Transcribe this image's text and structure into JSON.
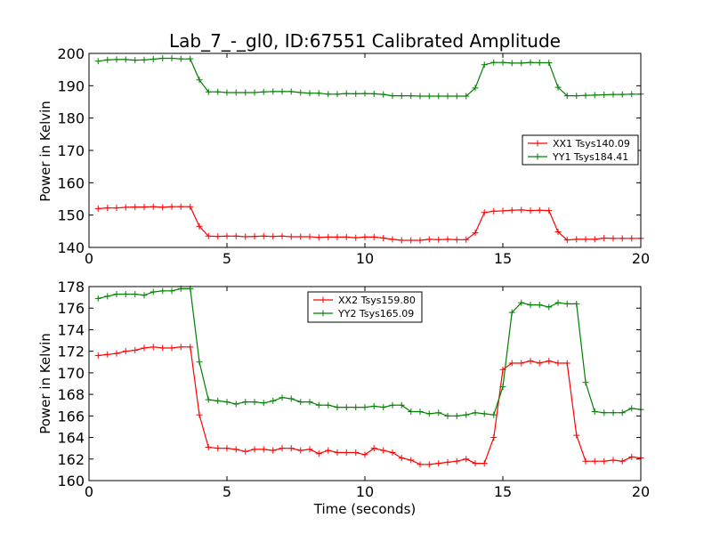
{
  "figure": {
    "title": "Lab_7_-_gl0, ID:67551 Calibrated Amplitude",
    "colors": {
      "xx": "#ff0000",
      "yy": "#008000",
      "frame": "#000000",
      "background": "#ffffff"
    }
  },
  "chart_data": [
    {
      "type": "line",
      "title": "Lab_7_-_gl0, ID:67551 Calibrated Amplitude",
      "xlabel": "",
      "ylabel": "Power in Kelvin",
      "xlim": [
        0,
        20
      ],
      "ylim": [
        140,
        200
      ],
      "xticks": [
        0,
        5,
        10,
        15,
        20
      ],
      "yticks": [
        140,
        150,
        160,
        170,
        180,
        190,
        200
      ],
      "grid": false,
      "legend_position": "right",
      "x": [
        0.33,
        0.67,
        1.0,
        1.33,
        1.67,
        2.0,
        2.33,
        2.67,
        3.0,
        3.33,
        3.67,
        4.0,
        4.33,
        4.67,
        5.0,
        5.33,
        5.67,
        6.0,
        6.33,
        6.67,
        7.0,
        7.33,
        7.67,
        8.0,
        8.33,
        8.67,
        9.0,
        9.33,
        9.67,
        10.0,
        10.33,
        10.67,
        11.0,
        11.33,
        11.67,
        12.0,
        12.33,
        12.67,
        13.0,
        13.33,
        13.67,
        14.0,
        14.33,
        14.67,
        15.0,
        15.33,
        15.67,
        16.0,
        16.33,
        16.67,
        17.0,
        17.33,
        17.67,
        18.0,
        18.33,
        18.67,
        19.0,
        19.33,
        19.67,
        20.0
      ],
      "series": [
        {
          "name": "XX1 Tsys140.09",
          "color": "#ff0000",
          "values": [
            152.0,
            152.2,
            152.2,
            152.4,
            152.5,
            152.5,
            152.6,
            152.4,
            152.6,
            152.6,
            152.6,
            146.5,
            143.5,
            143.4,
            143.5,
            143.5,
            143.3,
            143.4,
            143.5,
            143.4,
            143.5,
            143.3,
            143.3,
            143.3,
            143.1,
            143.2,
            143.2,
            143.2,
            143.0,
            143.2,
            143.2,
            142.9,
            142.5,
            142.2,
            142.2,
            142.2,
            142.5,
            142.4,
            142.5,
            142.4,
            142.4,
            144.5,
            150.8,
            151.2,
            151.3,
            151.5,
            151.6,
            151.4,
            151.5,
            151.4,
            144.8,
            142.3,
            142.5,
            142.5,
            142.5,
            142.9,
            142.8,
            142.8,
            142.8,
            142.8
          ]
        },
        {
          "name": "YY1 Tsys184.41",
          "color": "#008000",
          "values": [
            197.6,
            198.0,
            198.1,
            198.1,
            197.9,
            198.0,
            198.2,
            198.5,
            198.5,
            198.3,
            198.3,
            191.8,
            188.1,
            188.1,
            187.9,
            187.9,
            187.9,
            187.9,
            188.1,
            188.2,
            188.2,
            188.2,
            187.9,
            187.7,
            187.7,
            187.4,
            187.4,
            187.6,
            187.5,
            187.6,
            187.5,
            187.3,
            186.9,
            186.9,
            186.9,
            186.8,
            186.8,
            186.8,
            186.8,
            186.8,
            186.8,
            189.3,
            196.5,
            197.2,
            197.2,
            197.0,
            197.0,
            197.2,
            197.1,
            197.1,
            189.5,
            186.9,
            186.9,
            187.0,
            187.1,
            187.2,
            187.3,
            187.3,
            187.4,
            187.4
          ]
        }
      ]
    },
    {
      "type": "line",
      "title": "",
      "xlabel": "Time (seconds)",
      "ylabel": "Power in Kelvin",
      "xlim": [
        0,
        20
      ],
      "ylim": [
        160,
        178
      ],
      "xticks": [
        0,
        5,
        10,
        15,
        20
      ],
      "yticks": [
        160,
        162,
        164,
        166,
        168,
        170,
        172,
        174,
        176,
        178
      ],
      "grid": false,
      "legend_position": "top-center",
      "x": [
        0.33,
        0.67,
        1.0,
        1.33,
        1.67,
        2.0,
        2.33,
        2.67,
        3.0,
        3.33,
        3.67,
        4.0,
        4.33,
        4.67,
        5.0,
        5.33,
        5.67,
        6.0,
        6.33,
        6.67,
        7.0,
        7.33,
        7.67,
        8.0,
        8.33,
        8.67,
        9.0,
        9.33,
        9.67,
        10.0,
        10.33,
        10.67,
        11.0,
        11.33,
        11.67,
        12.0,
        12.33,
        12.67,
        13.0,
        13.33,
        13.67,
        14.0,
        14.33,
        14.67,
        15.0,
        15.33,
        15.67,
        16.0,
        16.33,
        16.67,
        17.0,
        17.33,
        17.67,
        18.0,
        18.33,
        18.67,
        19.0,
        19.33,
        19.67,
        20.0
      ],
      "series": [
        {
          "name": "XX2 Tsys159.80",
          "color": "#ff0000",
          "values": [
            171.6,
            171.7,
            171.8,
            172.0,
            172.1,
            172.3,
            172.4,
            172.3,
            172.3,
            172.4,
            172.4,
            166.1,
            163.1,
            163.0,
            163.0,
            162.9,
            162.7,
            162.9,
            162.9,
            162.8,
            163.0,
            163.0,
            162.8,
            162.9,
            162.5,
            162.8,
            162.6,
            162.6,
            162.6,
            162.4,
            163.0,
            162.8,
            162.6,
            162.1,
            161.9,
            161.5,
            161.5,
            161.6,
            161.7,
            161.8,
            162.0,
            161.6,
            161.6,
            164.0,
            170.3,
            170.9,
            170.9,
            171.1,
            170.9,
            171.1,
            170.9,
            170.9,
            164.2,
            161.8,
            161.8,
            161.8,
            161.9,
            161.8,
            162.2,
            162.1
          ]
        },
        {
          "name": "YY2 Tsys165.09",
          "color": "#008000",
          "values": [
            176.9,
            177.1,
            177.3,
            177.3,
            177.3,
            177.2,
            177.5,
            177.6,
            177.6,
            177.8,
            177.8,
            171.0,
            167.5,
            167.4,
            167.3,
            167.1,
            167.3,
            167.3,
            167.2,
            167.4,
            167.7,
            167.6,
            167.3,
            167.3,
            167.0,
            167.0,
            166.8,
            166.8,
            166.8,
            166.8,
            166.9,
            166.8,
            167.0,
            167.0,
            166.4,
            166.4,
            166.2,
            166.3,
            166.0,
            166.0,
            166.1,
            166.3,
            166.2,
            166.1,
            168.7,
            175.6,
            176.5,
            176.3,
            176.3,
            176.1,
            176.5,
            176.4,
            176.4,
            169.1,
            166.4,
            166.3,
            166.3,
            166.3,
            166.7,
            166.6
          ]
        }
      ]
    }
  ]
}
